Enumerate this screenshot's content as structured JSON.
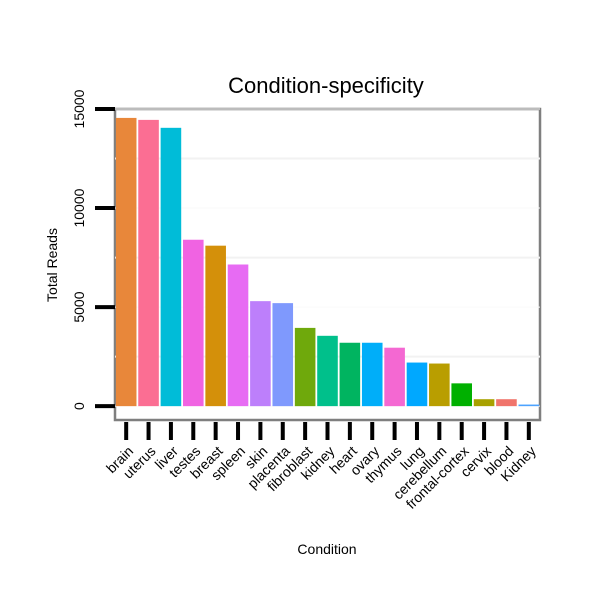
{
  "chart_data": {
    "type": "bar",
    "title": "Condition-specificity",
    "xlabel": "Condition",
    "ylabel": "Total Reads",
    "ylim": [
      -700,
      15000
    ],
    "yticks": [
      0,
      5000,
      10000,
      15000
    ],
    "yticklabels": [
      "0",
      "5000",
      "10000",
      "15000"
    ],
    "categories": [
      "brain",
      "uterus",
      "liver",
      "testes",
      "breast",
      "spleen",
      "skin",
      "placenta",
      "fibroblast",
      "kidney",
      "heart",
      "ovary",
      "thymus",
      "lung",
      "cerebellum",
      "frontal-cortex",
      "cervix",
      "blood",
      "Kidney"
    ],
    "values": [
      14550,
      14450,
      14050,
      8400,
      8100,
      7150,
      5300,
      5200,
      3950,
      3550,
      3200,
      3200,
      2950,
      2200,
      2150,
      1150,
      350,
      350,
      80
    ],
    "colors": [
      "#E8873A",
      "#FB6E93",
      "#00BCD8",
      "#F063E2",
      "#D4900A",
      "#E76BF3",
      "#BD7FFB",
      "#7F99FD",
      "#6FA90C",
      "#00C08B",
      "#00B460",
      "#00AEF9",
      "#F468D2",
      "#00A8FF",
      "#B99E00",
      "#00B000",
      "#A8A100",
      "#F0746B",
      "#4DA3FF"
    ],
    "grid": true,
    "legend": "none"
  }
}
